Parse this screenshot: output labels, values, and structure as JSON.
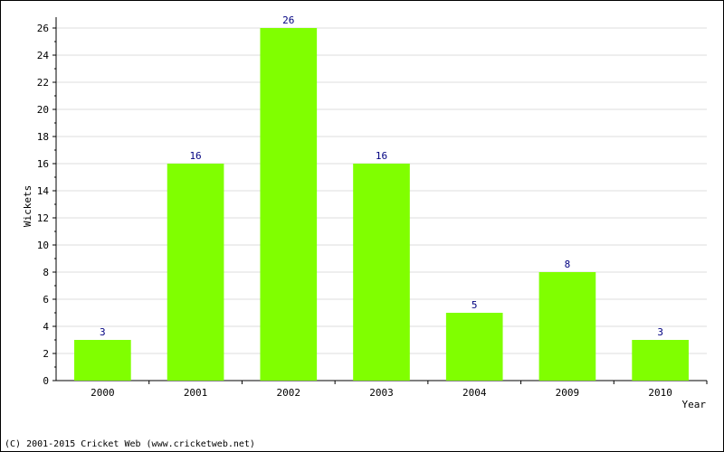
{
  "chart_data": {
    "type": "bar",
    "categories": [
      "2000",
      "2001",
      "2002",
      "2003",
      "2004",
      "2009",
      "2010"
    ],
    "values": [
      3,
      16,
      26,
      16,
      5,
      8,
      3
    ],
    "xlabel": "Year",
    "ylabel": "Wickets",
    "ylim": [
      0,
      26
    ],
    "yticks": [
      0,
      2,
      4,
      6,
      8,
      10,
      12,
      14,
      16,
      18,
      20,
      22,
      24,
      26
    ],
    "grid": true,
    "bar_color": "#80ff00",
    "label_color": "#000080"
  },
  "footer": {
    "copyright": "(C) 2001-2015 Cricket Web (www.cricketweb.net)"
  }
}
